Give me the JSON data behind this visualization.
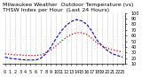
{
  "title": "Milwaukee Weather  Outdoor Temperature (vs)  THSW Index per Hour  (Last 24 Hours)",
  "outdoor_temp": [
    28,
    27,
    26,
    26,
    25,
    25,
    25,
    26,
    30,
    35,
    42,
    50,
    57,
    62,
    65,
    65,
    62,
    55,
    47,
    42,
    38,
    35,
    33,
    31
  ],
  "thsw_index": [
    22,
    20,
    19,
    18,
    17,
    17,
    17,
    20,
    28,
    40,
    55,
    68,
    78,
    85,
    88,
    86,
    80,
    68,
    52,
    42,
    34,
    28,
    25,
    22
  ],
  "hours": [
    0,
    1,
    2,
    3,
    4,
    5,
    6,
    7,
    8,
    9,
    10,
    11,
    12,
    13,
    14,
    15,
    16,
    17,
    18,
    19,
    20,
    21,
    22,
    23
  ],
  "ylim": [
    10,
    100
  ],
  "yticks": [
    10,
    20,
    30,
    40,
    50,
    60,
    70,
    80,
    90,
    100
  ],
  "temp_color": "#cc0000",
  "thsw_color": "#0000cc",
  "bg_color": "#ffffff",
  "grid_color": "#aaaaaa",
  "title_fontsize": 4.5,
  "tick_fontsize": 3.5
}
